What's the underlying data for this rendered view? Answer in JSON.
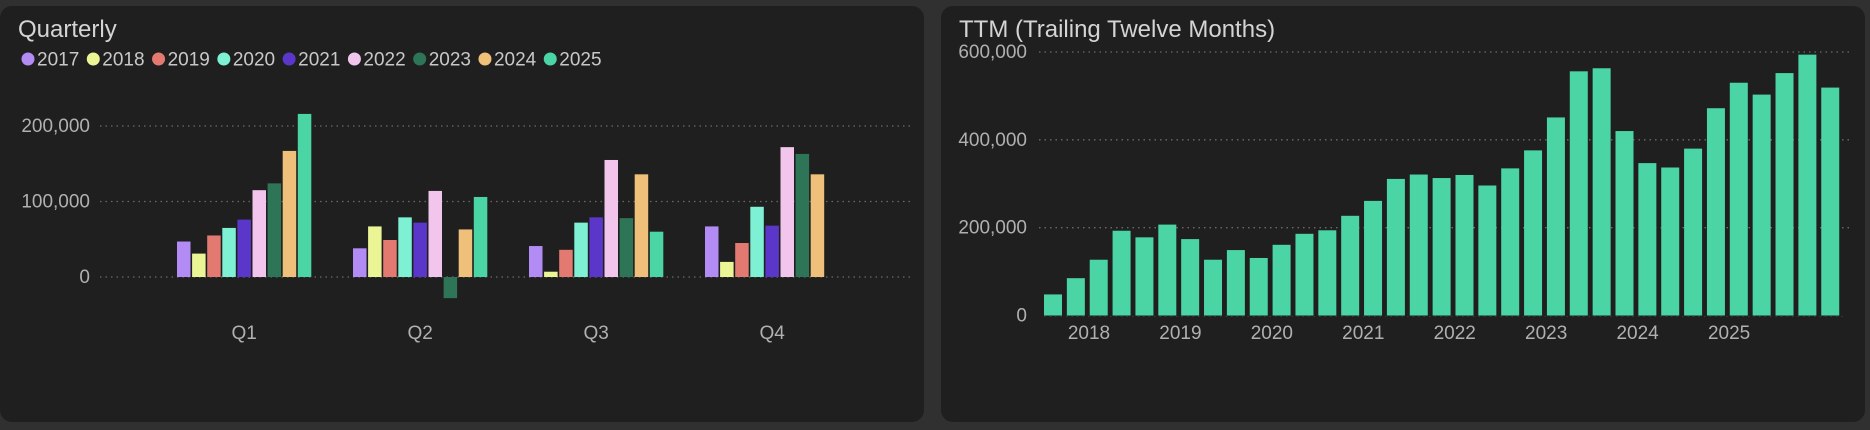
{
  "chart_data": [
    {
      "type": "bar",
      "title": "Quarterly",
      "categories": [
        "Q1",
        "Q2",
        "Q3",
        "Q4"
      ],
      "ylim": [
        -30000,
        230000
      ],
      "yticks": [
        0,
        100000,
        200000
      ],
      "ytick_labels": [
        "0",
        "100,000",
        "200,000"
      ],
      "grid": true,
      "legend_position": "top-left",
      "series": [
        {
          "name": "2017",
          "color": "#b28bf5",
          "values": [
            47000,
            38000,
            41000,
            67000
          ]
        },
        {
          "name": "2018",
          "color": "#ecf596",
          "values": [
            31000,
            67000,
            7000,
            20000
          ]
        },
        {
          "name": "2019",
          "color": "#e37a72",
          "values": [
            55000,
            49000,
            36000,
            45000
          ]
        },
        {
          "name": "2020",
          "color": "#7ef0d4",
          "values": [
            65000,
            79000,
            72000,
            93000
          ]
        },
        {
          "name": "2021",
          "color": "#5b37c9",
          "values": [
            76000,
            72000,
            79000,
            68000
          ]
        },
        {
          "name": "2022",
          "color": "#f2c6ec",
          "values": [
            115000,
            114000,
            155000,
            172000
          ]
        },
        {
          "name": "2023",
          "color": "#2e7456",
          "values": [
            124000,
            -28000,
            78000,
            163000
          ]
        },
        {
          "name": "2024",
          "color": "#efc079",
          "values": [
            167000,
            63000,
            136000,
            136000
          ]
        },
        {
          "name": "2025",
          "color": "#4bd4a4",
          "values": [
            216000,
            106000,
            60000,
            null
          ]
        }
      ]
    },
    {
      "type": "bar",
      "title": "TTM (Trailing Twelve Months)",
      "color": "#4bd4a4",
      "ylim": [
        0,
        620000
      ],
      "yticks": [
        0,
        200000,
        400000,
        600000
      ],
      "ytick_labels": [
        "0",
        "200,000",
        "400,000",
        "600,000"
      ],
      "grid": true,
      "xtick_labels": [
        "2018",
        "2019",
        "2020",
        "2021",
        "2022",
        "2023",
        "2024",
        "2025"
      ],
      "values": [
        48000,
        85000,
        127000,
        193000,
        178000,
        207000,
        174000,
        127000,
        149000,
        131000,
        161000,
        186000,
        194000,
        227000,
        261000,
        311000,
        321000,
        313000,
        320000,
        296000,
        335000,
        376000,
        451000,
        556000,
        563000,
        420000,
        347000,
        337000,
        380000,
        472000,
        530000,
        503000,
        552000,
        594000,
        519000
      ]
    }
  ]
}
